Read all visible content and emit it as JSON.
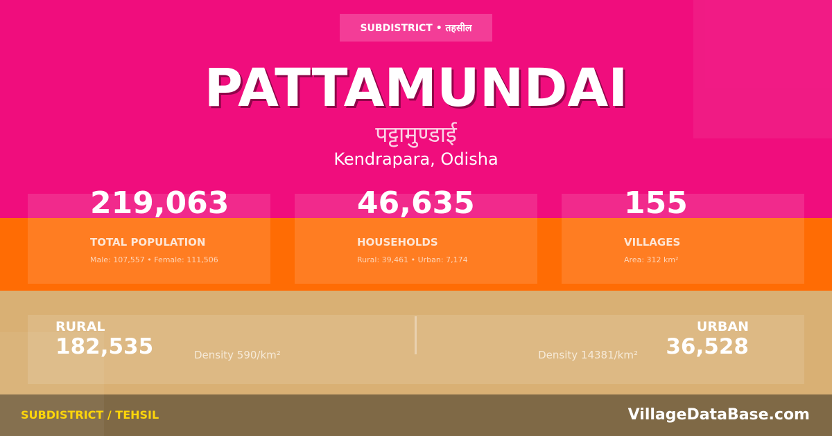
{
  "badge": "SUBDISTRICT • तहसील",
  "title": "PATTAMUNDAI",
  "title_hindi": "पट्टामुण्डाई",
  "location": "Kendrapara, Odisha",
  "stats": [
    {
      "value": "219,063",
      "label": "TOTAL POPULATION",
      "sub": "Male: 107,557 • Female: 111,506"
    },
    {
      "value": "46,635",
      "label": "HOUSEHOLDS",
      "sub": "Rural: 39,461 • Urban: 7,174"
    },
    {
      "value": "155",
      "label": "VILLAGES",
      "sub": "Area: 312 km²"
    }
  ],
  "rural": {
    "label": "RURAL",
    "value": "182,535",
    "density": "Density 590/km²"
  },
  "urban": {
    "label": "URBAN",
    "value": "36,528",
    "density": "Density 14381/km²"
  },
  "footer": {
    "left": "SUBDISTRICT / TEHSIL",
    "right": "VillageDataBase.com"
  },
  "colors": {
    "pink": "#f00d7d",
    "orange": "#ff6c04",
    "tan": "#d9b074",
    "footer": "#7f6946",
    "accent": "#ffd60a"
  }
}
